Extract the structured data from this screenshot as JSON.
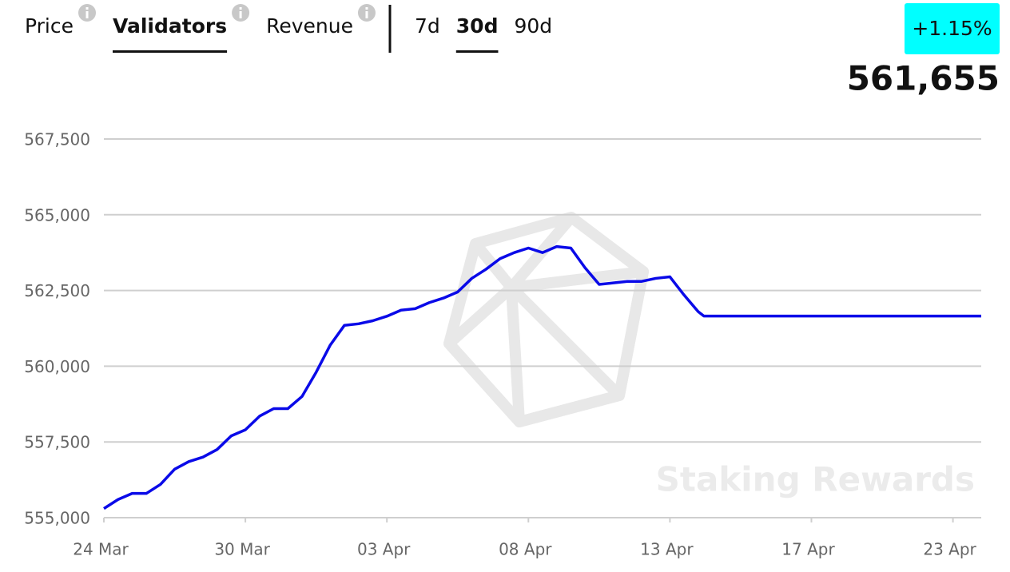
{
  "header": {
    "metric_tabs": [
      {
        "label": "Price",
        "active": false
      },
      {
        "label": "Validators",
        "active": true
      },
      {
        "label": "Revenue",
        "active": false
      }
    ],
    "period_tabs": [
      {
        "label": "7d",
        "active": false
      },
      {
        "label": "30d",
        "active": true
      },
      {
        "label": "90d",
        "active": false
      }
    ],
    "change": "+1.15%",
    "current_value": "561,655"
  },
  "chart_data": {
    "type": "line",
    "watermark": "Staking Rewards",
    "x": [
      0,
      0.5,
      1,
      1.5,
      2,
      2.5,
      3,
      3.5,
      4,
      4.5,
      5,
      5.5,
      6,
      6.5,
      7,
      7.5,
      8,
      8.5,
      9,
      9.5,
      10,
      10.5,
      11,
      11.5,
      12,
      12.5,
      13,
      13.5,
      14,
      14.5,
      15,
      15.5,
      16,
      16.5,
      17,
      17.5,
      18,
      18.5,
      19,
      19.5,
      20,
      20.5,
      21,
      21.2,
      31
    ],
    "series": [
      {
        "color": "#0a0ae8",
        "values": [
          555300,
          555600,
          555800,
          555800,
          556100,
          556600,
          556850,
          557000,
          557250,
          557700,
          557900,
          558350,
          558600,
          558600,
          559000,
          559800,
          560700,
          561350,
          561400,
          561500,
          561650,
          561850,
          561900,
          562100,
          562250,
          562450,
          562900,
          563200,
          563550,
          563750,
          563900,
          563750,
          563950,
          563900,
          563250,
          562700,
          562750,
          562800,
          562800,
          562900,
          562950,
          562350,
          561800,
          561655,
          561655
        ]
      }
    ],
    "xlim": [
      0,
      31
    ],
    "xticks": [
      {
        "value": 0,
        "label": "24 Mar"
      },
      {
        "value": 5,
        "label": "30 Mar"
      },
      {
        "value": 10,
        "label": "03 Apr"
      },
      {
        "value": 15,
        "label": "08 Apr"
      },
      {
        "value": 20,
        "label": "13 Apr"
      },
      {
        "value": 25,
        "label": "17 Apr"
      },
      {
        "value": 30,
        "label": "23 Apr"
      }
    ],
    "ylim": [
      555000,
      567500
    ],
    "yticks": [
      {
        "value": 555000,
        "label": "555,000"
      },
      {
        "value": 557500,
        "label": "557,500"
      },
      {
        "value": 560000,
        "label": "560,000"
      },
      {
        "value": 562500,
        "label": "562,500"
      },
      {
        "value": 565000,
        "label": "565,000"
      },
      {
        "value": 567500,
        "label": "567,500"
      }
    ],
    "grid": true
  }
}
